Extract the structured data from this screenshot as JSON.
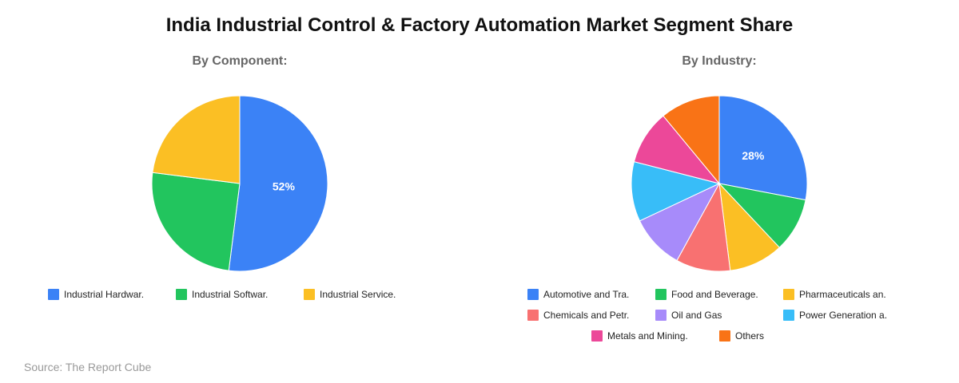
{
  "title": "India Industrial Control & Factory Automation Market Segment Share",
  "source": "Source: The Report Cube",
  "chart_data": [
    {
      "type": "pie",
      "title": "By Component:",
      "start": "top",
      "direction": "clockwise",
      "slices": [
        {
          "label": "Industrial Hardwar.",
          "value": 52,
          "color": "#3b82f6",
          "data_label": "52%"
        },
        {
          "label": "Industrial Softwar.",
          "value": 25,
          "color": "#22c55e",
          "data_label": ""
        },
        {
          "label": "Industrial Service.",
          "value": 23,
          "color": "#fbbf24",
          "data_label": ""
        }
      ]
    },
    {
      "type": "pie",
      "title": "By Industry:",
      "start": "top",
      "direction": "clockwise",
      "slices": [
        {
          "label": "Automotive and Tra.",
          "value": 28,
          "color": "#3b82f6",
          "data_label": "28%"
        },
        {
          "label": "Food and Beverage.",
          "value": 10,
          "color": "#22c55e",
          "data_label": ""
        },
        {
          "label": "Pharmaceuticals an.",
          "value": 10,
          "color": "#fbbf24",
          "data_label": ""
        },
        {
          "label": "Chemicals and Petr.",
          "value": 10,
          "color": "#f87171",
          "data_label": ""
        },
        {
          "label": "Oil and Gas",
          "value": 10,
          "color": "#a78bfa",
          "data_label": ""
        },
        {
          "label": "Power Generation a.",
          "value": 11,
          "color": "#38bdf8",
          "data_label": ""
        },
        {
          "label": "Metals and Mining.",
          "value": 10,
          "color": "#ec4899",
          "data_label": ""
        },
        {
          "label": "Others",
          "value": 11,
          "color": "#f97316",
          "data_label": ""
        }
      ]
    }
  ]
}
